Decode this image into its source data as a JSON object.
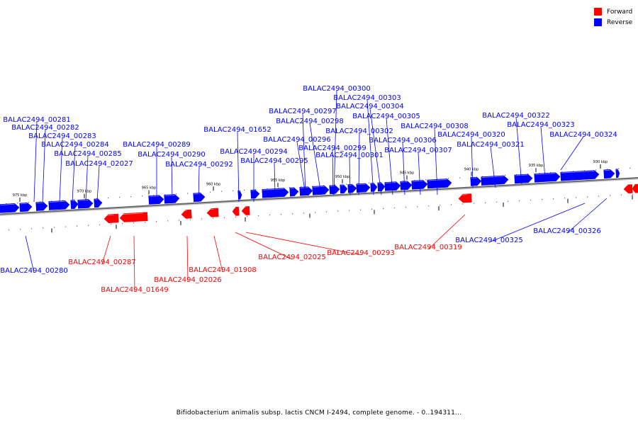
{
  "legend": {
    "forward_label": "Forward",
    "reverse_label": "Reverse",
    "forward_color": "#ff0000",
    "reverse_color": "#0000ff"
  },
  "caption": "Bifidobacterium animalis subsp. lactis CNCM I-2494, complete genome. - 0..194311...",
  "tick_labels": [
    "975 kbp",
    "970 kbp",
    "965 kbp",
    "960 kbp",
    "955 kbp",
    "950 kbp",
    "945 kbp",
    "940 kbp",
    "935 kbp",
    "930 kbp"
  ],
  "reverse_genes": [
    "BALAC2494_00280",
    "BALAC2494_00281",
    "BALAC2494_00282",
    "BALAC2494_00283",
    "BALAC2494_00284",
    "BALAC2494_00285",
    "BALAC2494_02027",
    "BALAC2494_00289",
    "BALAC2494_00290",
    "BALAC2494_00292",
    "BALAC2494_01652",
    "BALAC2494_00294",
    "BALAC2494_00295",
    "BALAC2494_00296",
    "BALAC2494_00297",
    "BALAC2494_00298",
    "BALAC2494_00299",
    "BALAC2494_00300",
    "BALAC2494_00301",
    "BALAC2494_00302",
    "BALAC2494_00303",
    "BALAC2494_00304",
    "BALAC2494_00305",
    "BALAC2494_00306",
    "BALAC2494_00307",
    "BALAC2494_00308",
    "BALAC2494_00320",
    "BALAC2494_00321",
    "BALAC2494_00322",
    "BALAC2494_00323",
    "BALAC2494_00324",
    "BALAC2494_00325",
    "BALAC2494_00326"
  ],
  "forward_genes": [
    "BALAC2494_00287",
    "BALAC2494_01649",
    "BALAC2494_02026",
    "BALAC2494_01908",
    "BALAC2494_02025",
    "BALAC2494_00293",
    "BALAC2494_00319"
  ]
}
